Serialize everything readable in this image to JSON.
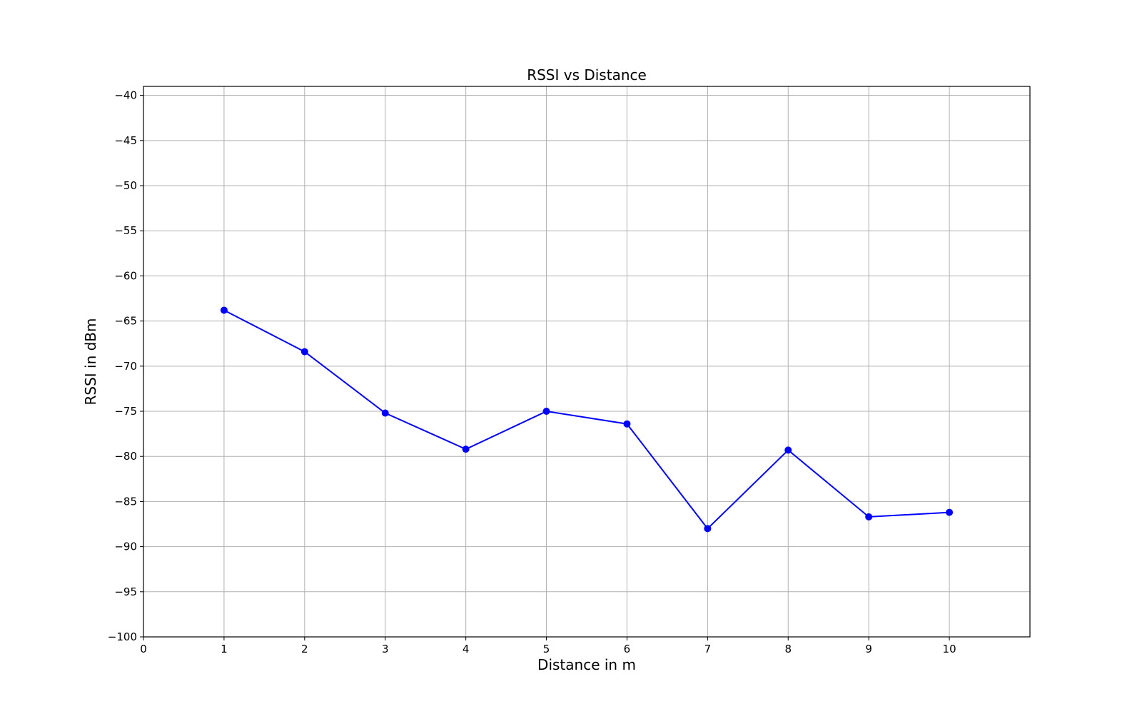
{
  "chart_data": {
    "type": "line",
    "title": "RSSI vs Distance",
    "xlabel": "Distance in m",
    "ylabel": "RSSI in dBm",
    "xlim": [
      0,
      11
    ],
    "ylim": [
      -100,
      -39
    ],
    "x_ticks": [
      0,
      1,
      2,
      3,
      4,
      5,
      6,
      7,
      8,
      9,
      10
    ],
    "y_ticks": [
      -100,
      -95,
      -90,
      -85,
      -80,
      -75,
      -70,
      -65,
      -60,
      -55,
      -50,
      -45,
      -40
    ],
    "x_tick_labels": [
      "0",
      "1",
      "2",
      "3",
      "4",
      "5",
      "6",
      "7",
      "8",
      "9",
      "10"
    ],
    "y_tick_labels": [
      "−100",
      "−95",
      "−90",
      "−85",
      "−80",
      "−75",
      "−70",
      "−65",
      "−60",
      "−55",
      "−50",
      "−45",
      "−40"
    ],
    "grid": true,
    "series": [
      {
        "color": "#0000ff",
        "marker": "circle",
        "x": [
          1,
          2,
          3,
          4,
          5,
          6,
          7,
          8,
          9,
          10
        ],
        "y": [
          -63.8,
          -68.4,
          -75.2,
          -79.2,
          -75.0,
          -76.4,
          -88.0,
          -79.3,
          -86.7,
          -86.2
        ]
      }
    ]
  }
}
